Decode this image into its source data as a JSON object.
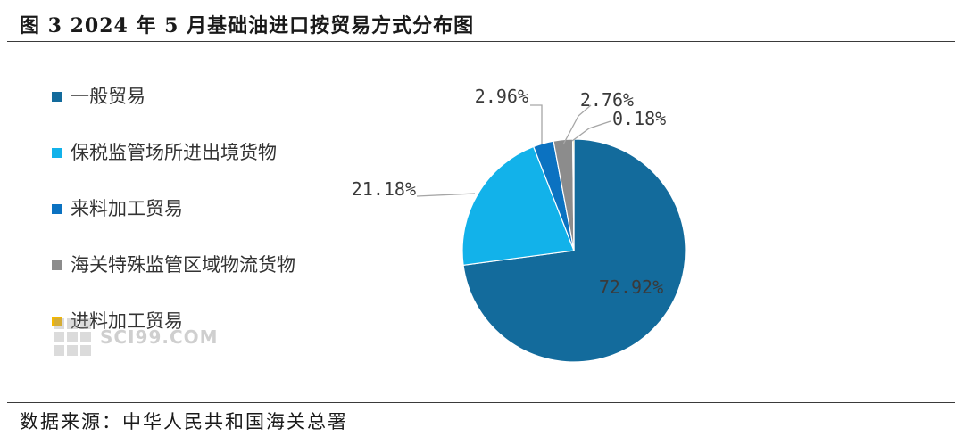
{
  "header": {
    "title": "图 3 2024 年 5 月基础油进口按贸易方式分布图"
  },
  "footer": {
    "source": "数据来源：中华人民共和国海关总署"
  },
  "watermark": {
    "brand": "SCI99.COM"
  },
  "chart_data": {
    "type": "pie",
    "title": "",
    "legend_position": "left",
    "slices": [
      {
        "label": "一般贸易",
        "value": 72.92,
        "display": "72.92%",
        "color": "#136b9c"
      },
      {
        "label": "保税监管场所进出境货物",
        "value": 21.18,
        "display": "21.18%",
        "color": "#12b2ea"
      },
      {
        "label": "来料加工贸易",
        "value": 2.96,
        "display": "2.96%",
        "color": "#0b72c1"
      },
      {
        "label": "海关特殊监管区域物流货物",
        "value": 2.76,
        "display": "2.76%",
        "color": "#8c8c8c"
      },
      {
        "label": "进料加工贸易",
        "value": 0.18,
        "display": "0.18%",
        "color": "#f5b800"
      }
    ]
  }
}
